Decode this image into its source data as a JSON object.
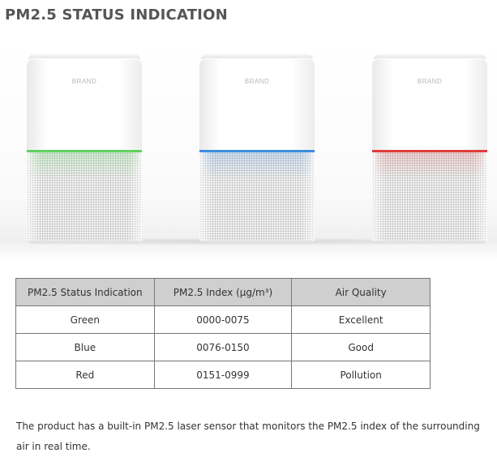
{
  "title": "PM2.5 STATUS INDICATION",
  "purifiers": [
    {
      "brand": "BRAND",
      "light_color": "#5fd35f",
      "status": "Green"
    },
    {
      "brand": "BRAND",
      "light_color": "#3d8de0",
      "status": "Blue"
    },
    {
      "brand": "BRAND",
      "light_color": "#e03c3c",
      "status": "Red"
    }
  ],
  "table": {
    "headers": [
      "PM2.5 Status Indication",
      "PM2.5 Index (μg/m³)",
      "Air Quality"
    ],
    "rows": [
      [
        "Green",
        "0000-0075",
        "Excellent"
      ],
      [
        "Blue",
        "0076-0150",
        "Good"
      ],
      [
        "Red",
        "0151-0999",
        "Pollution"
      ]
    ]
  },
  "description": "The product has a built-in PM2.5 laser sensor that monitors the PM2.5 index of the surrounding air in real time."
}
